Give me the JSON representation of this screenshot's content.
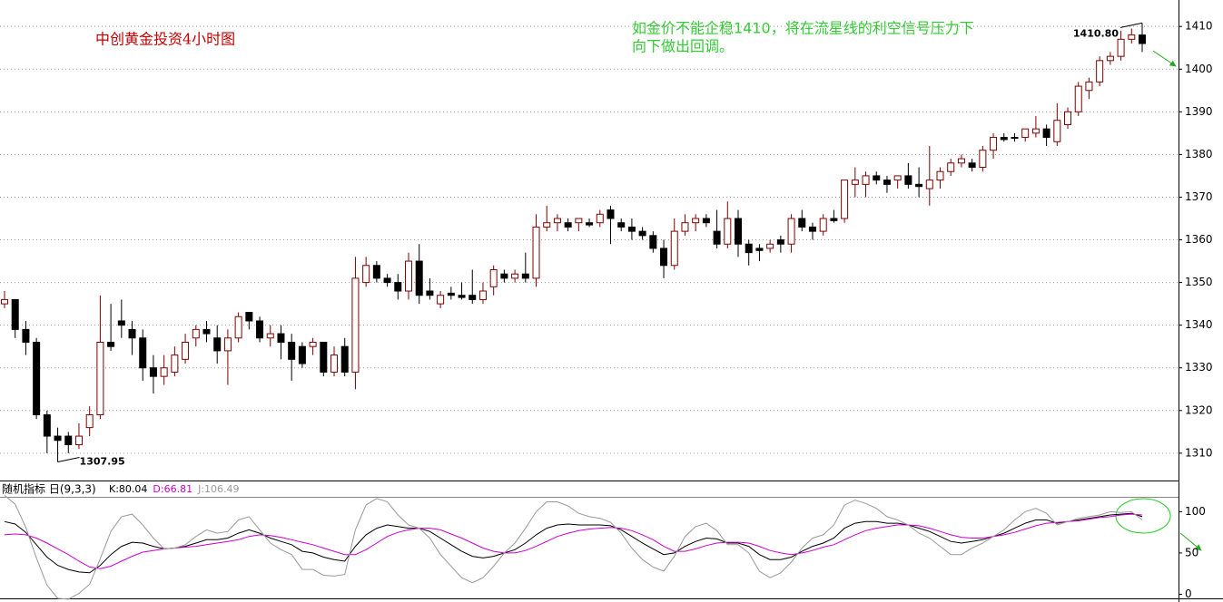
{
  "chart_data": [
    {
      "type": "candlestick",
      "title": "中创黄金投资4小时图",
      "annotation": [
        "如金价不能企稳1410，将在流星线的利空信号压力下",
        "向下做出回调。"
      ],
      "open": [
        1345,
        1346,
        1339,
        1336,
        1319,
        1314,
        1314,
        1312,
        1316,
        1319,
        1336,
        1341,
        1339,
        1337,
        1330,
        1328,
        1329,
        1332,
        1337,
        1339,
        1337,
        1334,
        1337,
        1343,
        1341,
        1337,
        1338,
        1336,
        1335,
        1335,
        1336,
        1329,
        1335,
        1329,
        1350,
        1354,
        1351,
        1350,
        1348,
        1355,
        1348,
        1345,
        1347.5,
        1347,
        1347,
        1346,
        1349,
        1352,
        1351,
        1352,
        1351,
        1363,
        1364,
        1364,
        1364,
        1364,
        1364,
        1367,
        1364,
        1363,
        1362,
        1361,
        1358,
        1354,
        1362,
        1364,
        1365,
        1362,
        1359,
        1365,
        1359,
        1358,
        1358,
        1360,
        1359,
        1365,
        1363,
        1362,
        1365,
        1365,
        1373,
        1373,
        1375,
        1374,
        1374,
        1375,
        1373,
        1372,
        1374,
        1376,
        1378,
        1378,
        1377,
        1381,
        1384,
        1384,
        1384,
        1385,
        1386,
        1383,
        1387,
        1390,
        1395,
        1397,
        1402,
        1403,
        1407,
        1408
      ],
      "high": [
        1348,
        1346,
        1341,
        1337,
        1320,
        1316,
        1315,
        1317,
        1321,
        1347,
        1345,
        1346,
        1341,
        1339,
        1333,
        1333,
        1335,
        1338,
        1340,
        1341,
        1340,
        1339,
        1343,
        1343,
        1342,
        1340,
        1340,
        1338,
        1336,
        1337,
        1336,
        1335,
        1337,
        1356,
        1356,
        1355,
        1352,
        1352,
        1357,
        1359,
        1351,
        1348,
        1349,
        1350,
        1353,
        1350,
        1354,
        1353,
        1353,
        1357,
        1366,
        1368,
        1366,
        1365,
        1365,
        1365,
        1367,
        1368,
        1365,
        1365,
        1363,
        1362,
        1360,
        1365,
        1366,
        1366,
        1366,
        1367,
        1369,
        1367,
        1360,
        1359,
        1360,
        1361,
        1366,
        1367,
        1364,
        1366,
        1367,
        1374,
        1377,
        1376,
        1376,
        1375,
        1375,
        1378,
        1377,
        1382,
        1377,
        1379,
        1380,
        1379,
        1382,
        1385,
        1385,
        1385,
        1386,
        1389,
        1387,
        1392,
        1391,
        1397,
        1398,
        1403,
        1404,
        1409,
        1409.5,
        1410.8
      ],
      "low": [
        1344,
        1337,
        1333,
        1318,
        1310,
        1307.95,
        1310,
        1311,
        1314,
        1318,
        1334,
        1337,
        1333,
        1327,
        1324,
        1326,
        1328,
        1331,
        1335,
        1336,
        1331,
        1326,
        1336,
        1339,
        1336,
        1335,
        1332,
        1327,
        1330,
        1333,
        1328,
        1328,
        1328,
        1325,
        1349,
        1350,
        1349,
        1346,
        1346,
        1345,
        1346,
        1344,
        1346,
        1346,
        1345,
        1345,
        1347,
        1350,
        1350,
        1350,
        1349,
        1362,
        1362,
        1362,
        1362,
        1363,
        1363,
        1359,
        1362,
        1360,
        1360,
        1357,
        1351,
        1353,
        1361,
        1362,
        1363,
        1358,
        1358,
        1356,
        1354,
        1355,
        1357,
        1357,
        1357,
        1362,
        1360,
        1361,
        1364,
        1364,
        1370,
        1370,
        1373,
        1371,
        1372,
        1372,
        1370,
        1368,
        1372,
        1375,
        1377,
        1376,
        1376,
        1379,
        1383,
        1383,
        1383,
        1384,
        1382,
        1382,
        1386,
        1389,
        1393,
        1396,
        1401,
        1402,
        1406,
        1404
      ],
      "close": [
        1346,
        1339,
        1336,
        1319,
        1314,
        1313,
        1312,
        1314,
        1319,
        1336,
        1335,
        1340,
        1337,
        1330,
        1328,
        1330,
        1333,
        1336,
        1339,
        1338,
        1334,
        1337,
        1342,
        1341,
        1337,
        1338,
        1336,
        1332,
        1331,
        1336,
        1329,
        1333,
        1329,
        1351,
        1354,
        1351,
        1350,
        1348,
        1355,
        1347,
        1347,
        1347,
        1347,
        1346.5,
        1346,
        1348,
        1353,
        1351,
        1352,
        1351,
        1363,
        1364,
        1365,
        1363,
        1365,
        1363.5,
        1366,
        1365,
        1363,
        1362,
        1361,
        1358,
        1354,
        1362,
        1364,
        1365,
        1364,
        1359,
        1365,
        1359,
        1357,
        1357.5,
        1359,
        1359,
        1365,
        1363,
        1362,
        1365,
        1364.5,
        1374,
        1374,
        1375,
        1374,
        1373,
        1375,
        1373,
        1372.5,
        1374,
        1376,
        1378,
        1379,
        1377,
        1381,
        1384,
        1383.5,
        1383.8,
        1386,
        1386,
        1384,
        1388,
        1390,
        1396,
        1397,
        1402,
        1403,
        1407,
        1408,
        1406
      ],
      "up_color": "#800000",
      "down_color": "#000000",
      "markers": [
        {
          "value": 1410.8,
          "label": "1410.80"
        },
        {
          "value": 1307.95,
          "label": "1307.95"
        }
      ],
      "ylim": [
        1303.6,
        1416.2
      ],
      "yticks": [
        1310,
        1320,
        1330,
        1340,
        1350,
        1360,
        1370,
        1380,
        1390,
        1400,
        1410
      ],
      "grid": true
    },
    {
      "type": "line",
      "title": "随机指标 日(9,3,3)",
      "series": [
        {
          "color": "#000000",
          "readout": {
            "value": 80.04,
            "label": "K:80.04"
          },
          "values": [
            88,
            85,
            75,
            60,
            45,
            35,
            30,
            27,
            26,
            35,
            48,
            58,
            63,
            62,
            58,
            55,
            56,
            58,
            62,
            66,
            66,
            68,
            74,
            78,
            74,
            68,
            64,
            60,
            52,
            50,
            45,
            42,
            40,
            58,
            72,
            80,
            84,
            82,
            80,
            80,
            76,
            68,
            60,
            52,
            46,
            44,
            46,
            50,
            54,
            62,
            72,
            80,
            84,
            85,
            84,
            84,
            84,
            83,
            78,
            70,
            62,
            55,
            48,
            50,
            58,
            64,
            68,
            67,
            62,
            62,
            58,
            48,
            42,
            42,
            45,
            52,
            58,
            62,
            68,
            80,
            86,
            88,
            88,
            86,
            86,
            84,
            80,
            76,
            70,
            64,
            62,
            64,
            66,
            70,
            74,
            80,
            86,
            90,
            90,
            86,
            88,
            90,
            92,
            94,
            96,
            97,
            98,
            94
          ]
        },
        {
          "color": "#cc00cc",
          "readout": {
            "value": 66.81,
            "label": "D:66.81"
          },
          "values": [
            72,
            73,
            72,
            68,
            62,
            55,
            48,
            40,
            33,
            31,
            34,
            40,
            46,
            51,
            53,
            55,
            56,
            57,
            58,
            60,
            62,
            64,
            66,
            70,
            72,
            71,
            69,
            66,
            63,
            60,
            56,
            52,
            48,
            48,
            54,
            62,
            70,
            75,
            78,
            80,
            80,
            78,
            73,
            68,
            62,
            56,
            52,
            50,
            50,
            53,
            58,
            64,
            70,
            74,
            77,
            79,
            80,
            81,
            80,
            77,
            72,
            66,
            58,
            52,
            52,
            55,
            59,
            62,
            63,
            63,
            62,
            58,
            53,
            50,
            48,
            50,
            53,
            57,
            60,
            66,
            72,
            77,
            80,
            82,
            84,
            84,
            83,
            80,
            76,
            72,
            69,
            68,
            68,
            70,
            72,
            75,
            79,
            83,
            86,
            87,
            88,
            89,
            91,
            93,
            94,
            96,
            97,
            96
          ]
        },
        {
          "color": "#999999",
          "readout": {
            "value": 106.49,
            "label": "J:106.49"
          },
          "values": [
            120,
            109,
            81,
            44,
            11,
            -5,
            -6,
            1,
            12,
            43,
            76,
            94,
            97,
            84,
            68,
            55,
            56,
            60,
            70,
            78,
            74,
            76,
            90,
            94,
            78,
            62,
            54,
            48,
            30,
            30,
            23,
            22,
            24,
            78,
            108,
            116,
            112,
            96,
            84,
            80,
            68,
            48,
            34,
            20,
            14,
            20,
            34,
            50,
            62,
            80,
            100,
            112,
            112,
            107,
            98,
            94,
            92,
            87,
            74,
            56,
            42,
            33,
            28,
            46,
            70,
            82,
            86,
            77,
            60,
            60,
            50,
            28,
            20,
            26,
            39,
            56,
            68,
            72,
            84,
            108,
            114,
            110,
            104,
            94,
            90,
            84,
            74,
            68,
            58,
            48,
            48,
            56,
            62,
            70,
            78,
            90,
            100,
            104,
            98,
            84,
            88,
            92,
            94,
            96,
            100,
            99,
            100,
            90
          ]
        }
      ],
      "ylim": [
        -5,
        118
      ],
      "yticks": [
        0,
        50,
        100
      ],
      "grid": false
    }
  ]
}
